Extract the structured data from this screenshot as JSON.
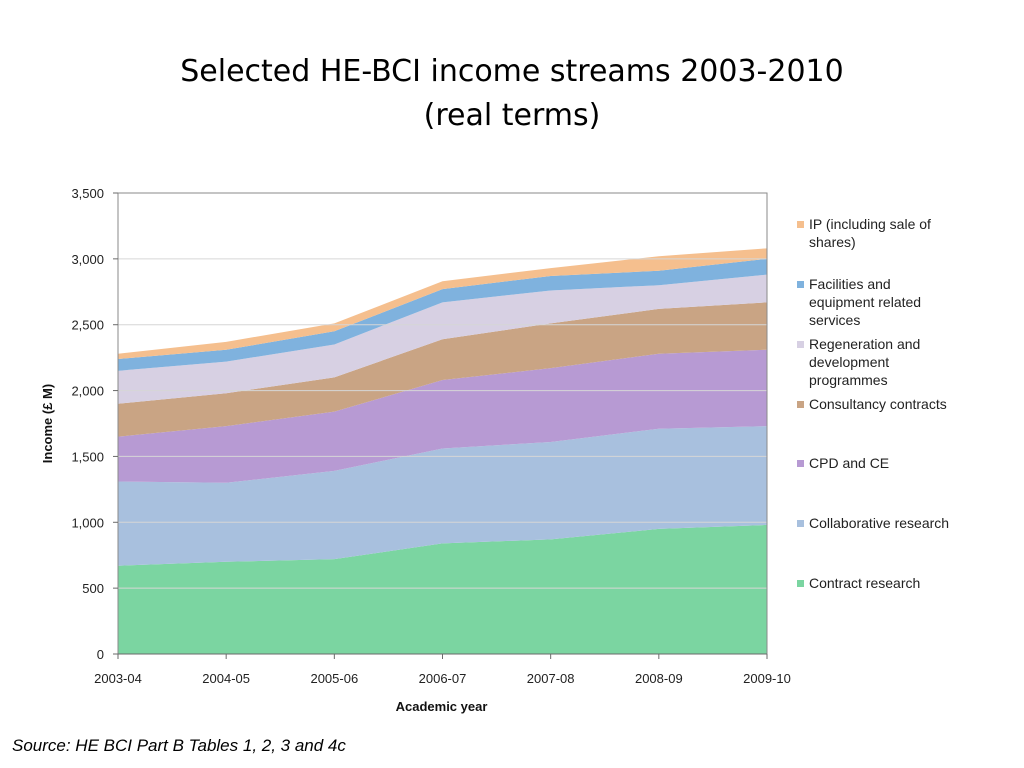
{
  "slide": {
    "title_line1": "Selected HE-BCI income streams 2003-2010",
    "title_line2": "(real terms)",
    "source": "Source: HE BCI Part B Tables 1, 2, 3 and 4c"
  },
  "chart_data": {
    "type": "area",
    "stacked": true,
    "xlabel": "Academic year",
    "ylabel": "Income (£ M)",
    "ylim": [
      0,
      3500
    ],
    "yticks": [
      0,
      500,
      1000,
      1500,
      2000,
      2500,
      3000,
      3500
    ],
    "ytick_labels": [
      "0",
      "500",
      "1,000",
      "1,500",
      "2,000",
      "2,500",
      "3,000",
      "3,500"
    ],
    "categories": [
      "2003-04",
      "2004-05",
      "2005-06",
      "2006-07",
      "2007-08",
      "2008-09",
      "2009-10"
    ],
    "grid": true,
    "legend_position": "right",
    "series": [
      {
        "name": "Contract research",
        "color": "#7bd5a1",
        "values": [
          670,
          700,
          720,
          840,
          870,
          950,
          980
        ]
      },
      {
        "name": "Collaborative research",
        "color": "#a8c0de",
        "values": [
          640,
          600,
          670,
          720,
          740,
          760,
          750
        ]
      },
      {
        "name": "CPD and CE",
        "color": "#b79ad3",
        "values": [
          340,
          430,
          450,
          520,
          560,
          570,
          580
        ]
      },
      {
        "name": "Consultancy contracts",
        "color": "#c9a484",
        "values": [
          250,
          250,
          260,
          310,
          340,
          340,
          360
        ]
      },
      {
        "name": "Regeneration and development programmes",
        "color": "#d7d0e3",
        "values": [
          250,
          240,
          250,
          280,
          250,
          180,
          210
        ]
      },
      {
        "name": "Facilities and equipment related services",
        "color": "#7fb2de",
        "values": [
          90,
          90,
          100,
          100,
          110,
          110,
          120
        ]
      },
      {
        "name": "IP (including sale of shares)",
        "color": "#f5bf8e",
        "values": [
          40,
          60,
          60,
          60,
          60,
          110,
          80
        ]
      }
    ],
    "legend_lines": [
      [
        "IP (including sale of",
        "shares)"
      ],
      [
        "Facilities and",
        "equipment related",
        "services"
      ],
      [
        "Regeneration and",
        "development",
        "programmes"
      ],
      [
        "Consultancy contracts"
      ],
      [
        "CPD and CE"
      ],
      [
        "Collaborative research"
      ],
      [
        "Contract research"
      ]
    ]
  }
}
